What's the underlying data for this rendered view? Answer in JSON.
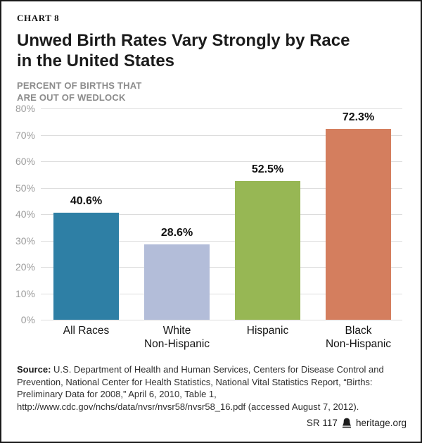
{
  "header": {
    "chart_label": "CHART 8",
    "title_line1": "Unwed Birth Rates Vary Strongly by Race",
    "title_line2": "in the United States",
    "subtitle_line1": "PERCENT OF BIRTHS THAT",
    "subtitle_line2": "ARE OUT OF WEDLOCK"
  },
  "chart_data": {
    "type": "bar",
    "title": "Unwed Birth Rates Vary Strongly by Race in the United States",
    "subtitle": "Percent of births that are out of wedlock",
    "categories": [
      "All Races",
      "White Non-Hispanic",
      "Hispanic",
      "Black Non-Hispanic"
    ],
    "category_label_lines": [
      [
        "All Races"
      ],
      [
        "White",
        "Non-Hispanic"
      ],
      [
        "Hispanic"
      ],
      [
        "Black",
        "Non-Hispanic"
      ]
    ],
    "values": [
      40.6,
      28.6,
      52.5,
      72.3
    ],
    "value_labels": [
      "40.6%",
      "28.6%",
      "52.5%",
      "72.3%"
    ],
    "bar_colors": [
      "#2e7fa5",
      "#b3bdd9",
      "#97b754",
      "#d47e5e"
    ],
    "ylim": [
      0,
      80
    ],
    "ytick_step": 10,
    "ytick_suffix": "%",
    "grid": true,
    "legend": "none",
    "gridline_color": "#dcdcdc",
    "axis_label_color": "#9c9c9c"
  },
  "source": {
    "label": "Source:",
    "text": " U.S. Department of Health and Human Services, Centers for Disease Control and Prevention, National Center for Health Statistics, National Vital Statistics Report, “Births: Preliminary Data for 2008,” April 6, 2010, Table 1, http://www.cdc.gov/nchs/data/nvsr/nvsr58/nvsr58_16.pdf (accessed August 7, 2012)."
  },
  "footer": {
    "report_id": "SR 117",
    "site": "heritage.org"
  }
}
